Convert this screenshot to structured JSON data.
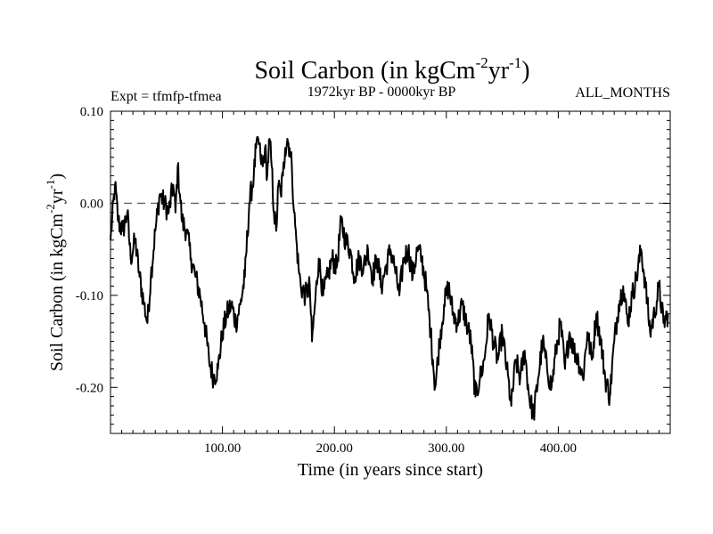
{
  "chart_data": {
    "type": "line",
    "title": "Soil Carbon (in kgCm",
    "title_sup1": "-2",
    "title_mid": "yr",
    "title_sup2": "-1",
    "title_end": ")",
    "subtitle_left": "Expt = tfmfp-tfmea",
    "subtitle_center": "1972kyr BP - 0000kyr BP",
    "subtitle_right": "ALL_MONTHS",
    "xlabel": "Time (in years since start)",
    "ylabel": "Soil Carbon (in kgCm",
    "ylabel_sup1": "-2",
    "ylabel_mid": "yr",
    "ylabel_sup2": "-1",
    "ylabel_end": ")",
    "xlim": [
      0,
      500
    ],
    "ylim": [
      -0.25,
      0.1
    ],
    "x_ticks": [
      {
        "value": 100,
        "label": "100.00"
      },
      {
        "value": 200,
        "label": "200.00"
      },
      {
        "value": 300,
        "label": "300.00"
      },
      {
        "value": 400,
        "label": "400.00"
      }
    ],
    "y_ticks": [
      {
        "value": 0.1,
        "label": "0.10"
      },
      {
        "value": 0.0,
        "label": "0.00"
      },
      {
        "value": -0.1,
        "label": "-0.10"
      },
      {
        "value": -0.2,
        "label": "-0.20"
      }
    ],
    "reference_line": {
      "y": 0.0,
      "style": "dashed"
    },
    "series": [
      {
        "name": "Soil Carbon",
        "color": "#000000",
        "x": [
          0,
          4,
          7,
          11,
          15,
          18,
          22,
          26,
          30,
          33,
          36,
          40,
          44,
          48,
          52,
          56,
          58,
          60,
          62,
          64,
          68,
          72,
          76,
          80,
          84,
          88,
          92,
          96,
          100,
          104,
          108,
          112,
          116,
          120,
          124,
          128,
          130,
          132,
          134,
          136,
          138,
          140,
          142,
          144,
          146,
          148,
          150,
          152,
          154,
          156,
          158,
          160,
          162,
          164,
          166,
          168,
          170,
          174,
          178,
          180,
          182,
          186,
          190,
          194,
          198,
          202,
          206,
          210,
          214,
          218,
          222,
          226,
          230,
          234,
          238,
          242,
          246,
          250,
          254,
          258,
          262,
          266,
          270,
          274,
          278,
          282,
          286,
          288,
          290,
          294,
          298,
          302,
          306,
          310,
          314,
          318,
          322,
          326,
          330,
          334,
          338,
          342,
          346,
          350,
          354,
          358,
          362,
          366,
          370,
          374,
          378,
          382,
          386,
          390,
          394,
          398,
          402,
          406,
          410,
          414,
          418,
          422,
          426,
          430,
          434,
          438,
          442,
          446,
          450,
          454,
          458,
          462,
          466,
          470,
          474,
          478,
          482,
          486,
          490,
          494,
          498
        ],
        "y": [
          -0.04,
          0.02,
          -0.02,
          -0.03,
          -0.01,
          -0.06,
          -0.04,
          -0.08,
          -0.11,
          -0.13,
          -0.08,
          -0.03,
          0.01,
          0.0,
          -0.01,
          0.02,
          -0.01,
          0.04,
          0.01,
          -0.02,
          -0.03,
          -0.06,
          -0.08,
          -0.1,
          -0.13,
          -0.17,
          -0.19,
          -0.18,
          -0.14,
          -0.12,
          -0.11,
          -0.13,
          -0.11,
          -0.08,
          0.0,
          0.03,
          0.06,
          0.07,
          0.05,
          0.04,
          0.06,
          0.03,
          0.07,
          0.04,
          -0.01,
          -0.03,
          0.02,
          0.01,
          0.03,
          0.06,
          0.07,
          0.06,
          0.04,
          -0.01,
          -0.04,
          -0.07,
          -0.09,
          -0.1,
          -0.09,
          -0.15,
          -0.12,
          -0.06,
          -0.1,
          -0.08,
          -0.06,
          -0.07,
          -0.02,
          -0.04,
          -0.05,
          -0.08,
          -0.06,
          -0.07,
          -0.05,
          -0.08,
          -0.06,
          -0.09,
          -0.07,
          -0.05,
          -0.07,
          -0.1,
          -0.06,
          -0.05,
          -0.08,
          -0.05,
          -0.06,
          -0.09,
          -0.14,
          -0.17,
          -0.2,
          -0.15,
          -0.11,
          -0.09,
          -0.12,
          -0.13,
          -0.11,
          -0.13,
          -0.15,
          -0.21,
          -0.19,
          -0.17,
          -0.12,
          -0.15,
          -0.17,
          -0.14,
          -0.18,
          -0.22,
          -0.17,
          -0.19,
          -0.16,
          -0.21,
          -0.23,
          -0.19,
          -0.15,
          -0.18,
          -0.2,
          -0.16,
          -0.13,
          -0.18,
          -0.14,
          -0.16,
          -0.17,
          -0.19,
          -0.14,
          -0.17,
          -0.12,
          -0.15,
          -0.19,
          -0.21,
          -0.15,
          -0.11,
          -0.09,
          -0.13,
          -0.1,
          -0.08,
          -0.05,
          -0.09,
          -0.14,
          -0.12,
          -0.09,
          -0.13,
          -0.12
        ]
      }
    ]
  }
}
